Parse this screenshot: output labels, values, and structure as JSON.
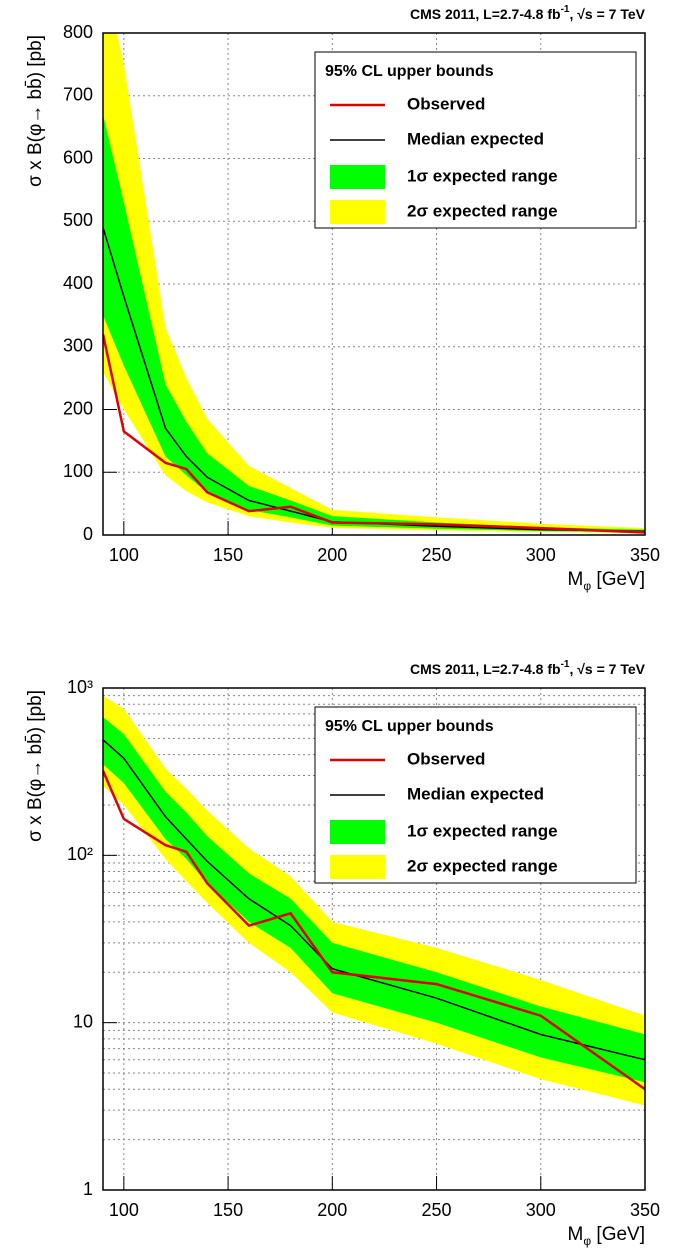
{
  "chart_data": [
    {
      "type": "line",
      "header": [
        "CMS 2011, L=2.7-4.8 fb",
        "-1",
        ", √s = 7 TeV"
      ],
      "xlabel": [
        "M",
        "φ",
        " [GeV]"
      ],
      "ylabel": "σ x B(φ→ bb̄) [pb]",
      "x": [
        90,
        100,
        120,
        130,
        140,
        160,
        180,
        200,
        250,
        300,
        350
      ],
      "xlim": [
        90,
        350
      ],
      "xticks": [
        100,
        150,
        200,
        250,
        300,
        350
      ],
      "ylim": [
        0,
        800
      ],
      "yticks": [
        0,
        100,
        200,
        300,
        400,
        500,
        600,
        700,
        800
      ],
      "log_y": false,
      "grid": true,
      "legend": "top-right",
      "legend_title": "95% CL upper bounds",
      "series": [
        {
          "name": "Observed",
          "color": "#e00000",
          "values": [
            320,
            165,
            115,
            105,
            68,
            38,
            45,
            20,
            17,
            11,
            4
          ]
        },
        {
          "name": "Median expected",
          "color": "#000000",
          "values": [
            490,
            380,
            170,
            125,
            92,
            55,
            38,
            21,
            14,
            8.5,
            6
          ]
        }
      ],
      "bands": [
        {
          "name": "1σ expected range",
          "color": "#00ff00",
          "lower": [
            350,
            270,
            125,
            95,
            68,
            40,
            28,
            15,
            10,
            6.2,
            4.4
          ],
          "upper": [
            670,
            530,
            240,
            180,
            130,
            78,
            55,
            30,
            20,
            12.5,
            8.5
          ]
        },
        {
          "name": "2σ expected range",
          "color": "#ffff00",
          "lower": [
            260,
            200,
            95,
            70,
            52,
            30,
            20,
            11.5,
            7.5,
            4.6,
            3.2
          ],
          "upper": [
            900,
            750,
            330,
            250,
            185,
            110,
            75,
            40,
            28,
            18,
            11
          ]
        }
      ]
    },
    {
      "type": "line",
      "header": [
        "CMS 2011, L=2.7-4.8 fb",
        "-1",
        ", √s = 7 TeV"
      ],
      "xlabel": [
        "M",
        "φ",
        " [GeV]"
      ],
      "ylabel": "σ x B(φ→ bb̄) [pb]",
      "x": [
        90,
        100,
        120,
        130,
        140,
        160,
        180,
        200,
        250,
        300,
        350
      ],
      "xlim": [
        90,
        350
      ],
      "xticks": [
        100,
        150,
        200,
        250,
        300,
        350
      ],
      "ylim": [
        1,
        1000
      ],
      "yticks": [
        1,
        10,
        {
          "value": 100,
          "label": "10²"
        },
        {
          "value": 1000,
          "label": "10³"
        }
      ],
      "log_y": true,
      "grid": true,
      "legend": "top-right",
      "legend_title": "95% CL upper bounds",
      "series": [
        {
          "name": "Observed",
          "color": "#e00000",
          "values": [
            320,
            165,
            115,
            105,
            68,
            38,
            45,
            20,
            17,
            11,
            4
          ]
        },
        {
          "name": "Median expected",
          "color": "#000000",
          "values": [
            490,
            380,
            170,
            125,
            92,
            55,
            38,
            21,
            14,
            8.5,
            6
          ]
        }
      ],
      "bands": [
        {
          "name": "1σ expected range",
          "color": "#00ff00",
          "lower": [
            350,
            270,
            125,
            95,
            68,
            40,
            28,
            15,
            10,
            6.2,
            4.4
          ],
          "upper": [
            670,
            530,
            240,
            180,
            130,
            78,
            55,
            30,
            20,
            12.5,
            8.5
          ]
        },
        {
          "name": "2σ expected range",
          "color": "#ffff00",
          "lower": [
            260,
            200,
            95,
            70,
            52,
            30,
            20,
            11.5,
            7.5,
            4.6,
            3.2
          ],
          "upper": [
            900,
            750,
            330,
            250,
            185,
            110,
            75,
            40,
            28,
            18,
            11
          ]
        }
      ]
    }
  ]
}
